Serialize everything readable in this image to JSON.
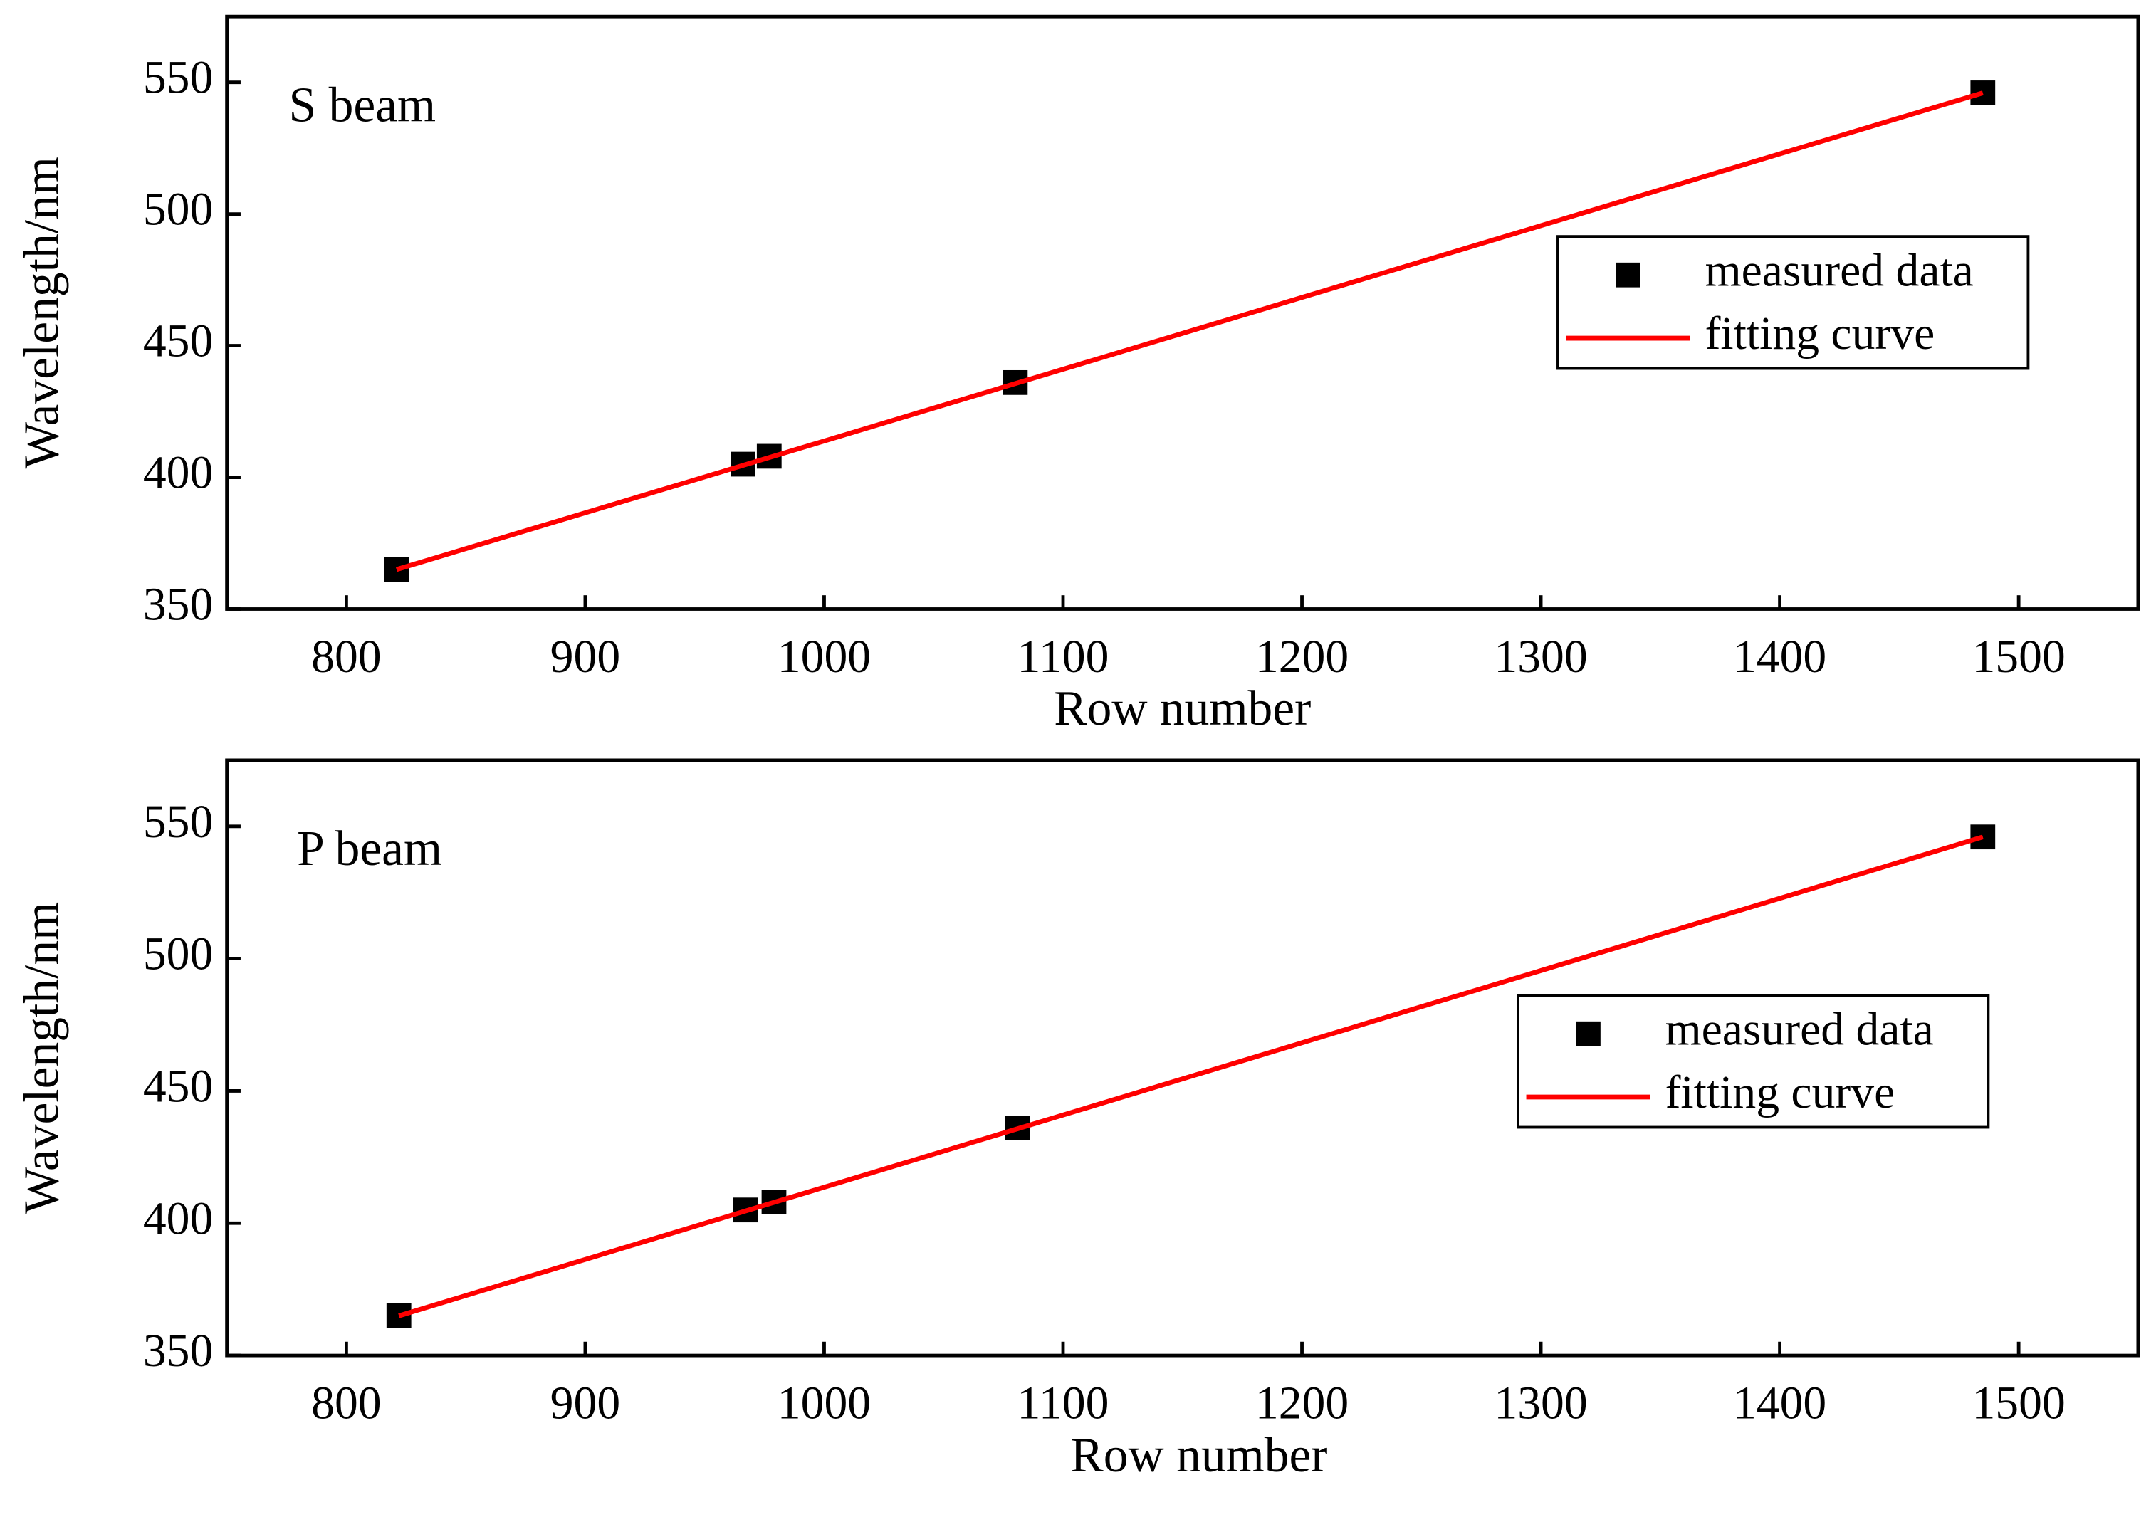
{
  "chart_data": [
    {
      "type": "scatter",
      "annotation": "S beam",
      "x_label": "Row number",
      "y_label": "Wavelength/nm",
      "xlim": [
        750,
        1550
      ],
      "xticks": [
        800,
        900,
        1000,
        1100,
        1200,
        1300,
        1400,
        1500
      ],
      "ylim": [
        350,
        575
      ],
      "yticks": [
        350,
        400,
        450,
        500,
        550
      ],
      "legend": "right",
      "series": [
        {
          "name": "measured data",
          "style": "marker",
          "color": "#000000",
          "x": [
            821,
            966,
            977,
            1080,
            1485
          ],
          "values": [
            365,
            405,
            408,
            436,
            546
          ]
        },
        {
          "name": "fitting curve",
          "style": "line",
          "color": "#ff0000",
          "x": [
            821,
            1485
          ],
          "values": [
            365,
            546
          ]
        }
      ]
    },
    {
      "type": "scatter",
      "annotation": "P beam",
      "x_label": "Row number",
      "y_label": "Wavelength/nm",
      "xlim": [
        750,
        1550
      ],
      "xticks": [
        800,
        900,
        1000,
        1100,
        1200,
        1300,
        1400,
        1500
      ],
      "ylim": [
        350,
        575
      ],
      "yticks": [
        350,
        400,
        450,
        500,
        550
      ],
      "legend": "right",
      "series": [
        {
          "name": "measured data",
          "style": "marker",
          "color": "#000000",
          "x": [
            822,
            967,
            979,
            1081,
            1485
          ],
          "values": [
            365,
            405,
            408,
            436,
            546
          ]
        },
        {
          "name": "fitting curve",
          "style": "line",
          "color": "#ff0000",
          "x": [
            822,
            1485
          ],
          "values": [
            365,
            546
          ]
        }
      ]
    }
  ]
}
